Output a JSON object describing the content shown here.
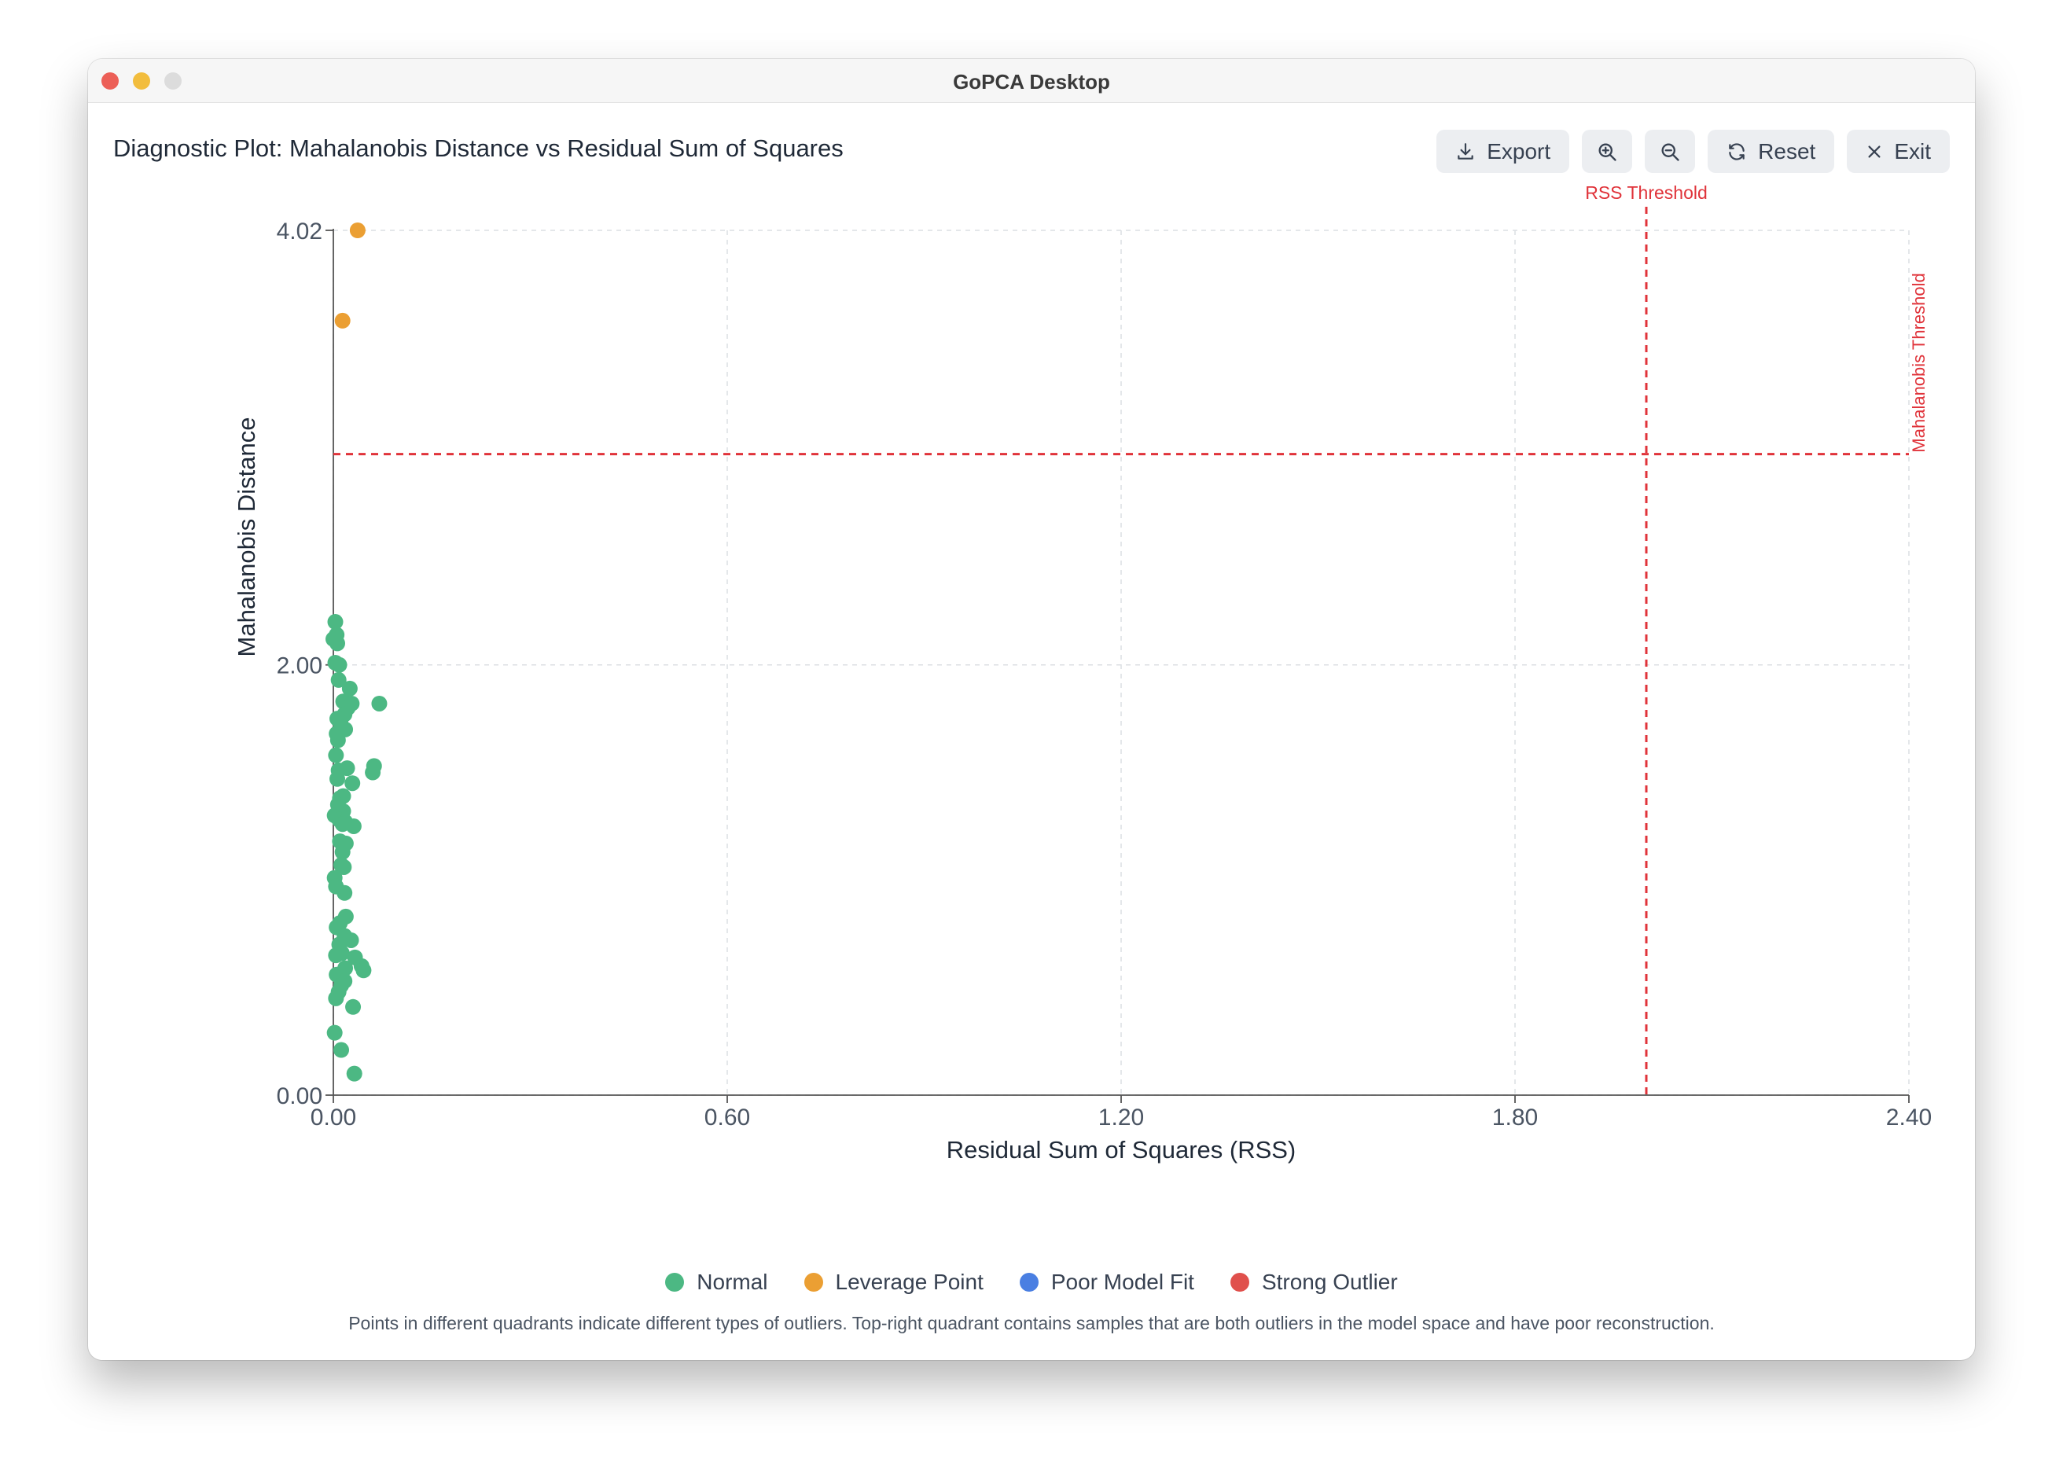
{
  "window": {
    "title": "GoPCA Desktop"
  },
  "header": {
    "title": "Diagnostic Plot: Mahalanobis Distance vs Residual Sum of Squares",
    "export_label": "Export",
    "zoom_in_icon": "zoom-in-icon",
    "zoom_out_icon": "zoom-out-icon",
    "reset_label": "Reset",
    "exit_label": "Exit"
  },
  "legend": {
    "items": [
      {
        "label": "Normal",
        "color": "#4cb883"
      },
      {
        "label": "Leverage Point",
        "color": "#eb9f33"
      },
      {
        "label": "Poor Model Fit",
        "color": "#4a7fe2"
      },
      {
        "label": "Strong Outlier",
        "color": "#e0504c"
      }
    ]
  },
  "caption": "Points in different quadrants indicate different types of outliers. Top-right quadrant contains samples that are both outliers in the model space and have poor reconstruction.",
  "chart_data": {
    "type": "scatter",
    "xlabel": "Residual Sum of Squares (RSS)",
    "ylabel": "Mahalanobis Distance",
    "xlim": [
      0,
      2.4
    ],
    "ylim": [
      0,
      4.02
    ],
    "xticks": [
      "0.00",
      "0.60",
      "1.20",
      "1.80",
      "2.40"
    ],
    "yticks": [
      "0.00",
      "2.00",
      "4.02"
    ],
    "grid": true,
    "thresholds": {
      "rss": {
        "value": 2.0,
        "label": "RSS Threshold"
      },
      "mahalanobis": {
        "value": 2.98,
        "label": "Mahalanobis Threshold"
      }
    },
    "series": [
      {
        "name": "Normal",
        "color": "#4cb883",
        "points": [
          [
            0.003,
            2.2
          ],
          [
            0.005,
            2.14
          ],
          [
            0.0,
            2.12
          ],
          [
            0.006,
            2.1
          ],
          [
            0.003,
            2.01
          ],
          [
            0.009,
            2.0
          ],
          [
            0.008,
            1.93
          ],
          [
            0.025,
            1.89
          ],
          [
            0.015,
            1.83
          ],
          [
            0.028,
            1.82
          ],
          [
            0.022,
            1.8
          ],
          [
            0.017,
            1.77
          ],
          [
            0.07,
            1.82
          ],
          [
            0.006,
            1.75
          ],
          [
            0.011,
            1.73
          ],
          [
            0.018,
            1.7
          ],
          [
            0.005,
            1.68
          ],
          [
            0.007,
            1.65
          ],
          [
            0.004,
            1.58
          ],
          [
            0.062,
            1.53
          ],
          [
            0.021,
            1.52
          ],
          [
            0.008,
            1.51
          ],
          [
            0.06,
            1.5
          ],
          [
            0.029,
            1.45
          ],
          [
            0.006,
            1.47
          ],
          [
            0.015,
            1.39
          ],
          [
            0.01,
            1.38
          ],
          [
            0.007,
            1.35
          ],
          [
            0.015,
            1.32
          ],
          [
            0.002,
            1.3
          ],
          [
            0.009,
            1.28
          ],
          [
            0.018,
            1.27
          ],
          [
            0.031,
            1.25
          ],
          [
            0.014,
            1.26
          ],
          [
            0.01,
            1.18
          ],
          [
            0.019,
            1.17
          ],
          [
            0.014,
            1.13
          ],
          [
            0.012,
            1.07
          ],
          [
            0.016,
            1.06
          ],
          [
            0.002,
            1.01
          ],
          [
            0.004,
            0.97
          ],
          [
            0.017,
            0.94
          ],
          [
            0.019,
            0.83
          ],
          [
            0.01,
            0.8
          ],
          [
            0.005,
            0.78
          ],
          [
            0.017,
            0.74
          ],
          [
            0.027,
            0.72
          ],
          [
            0.009,
            0.7
          ],
          [
            0.033,
            0.64
          ],
          [
            0.013,
            0.66
          ],
          [
            0.004,
            0.65
          ],
          [
            0.043,
            0.6
          ],
          [
            0.046,
            0.58
          ],
          [
            0.018,
            0.59
          ],
          [
            0.005,
            0.56
          ],
          [
            0.017,
            0.53
          ],
          [
            0.012,
            0.51
          ],
          [
            0.008,
            0.48
          ],
          [
            0.004,
            0.45
          ],
          [
            0.03,
            0.41
          ],
          [
            0.002,
            0.29
          ],
          [
            0.012,
            0.21
          ],
          [
            0.032,
            0.1
          ]
        ]
      },
      {
        "name": "Leverage Point",
        "color": "#eb9f33",
        "points": [
          [
            0.037,
            4.02
          ],
          [
            0.014,
            3.6
          ]
        ]
      },
      {
        "name": "Poor Model Fit",
        "color": "#4a7fe2",
        "points": []
      },
      {
        "name": "Strong Outlier",
        "color": "#e0504c",
        "points": []
      }
    ]
  }
}
